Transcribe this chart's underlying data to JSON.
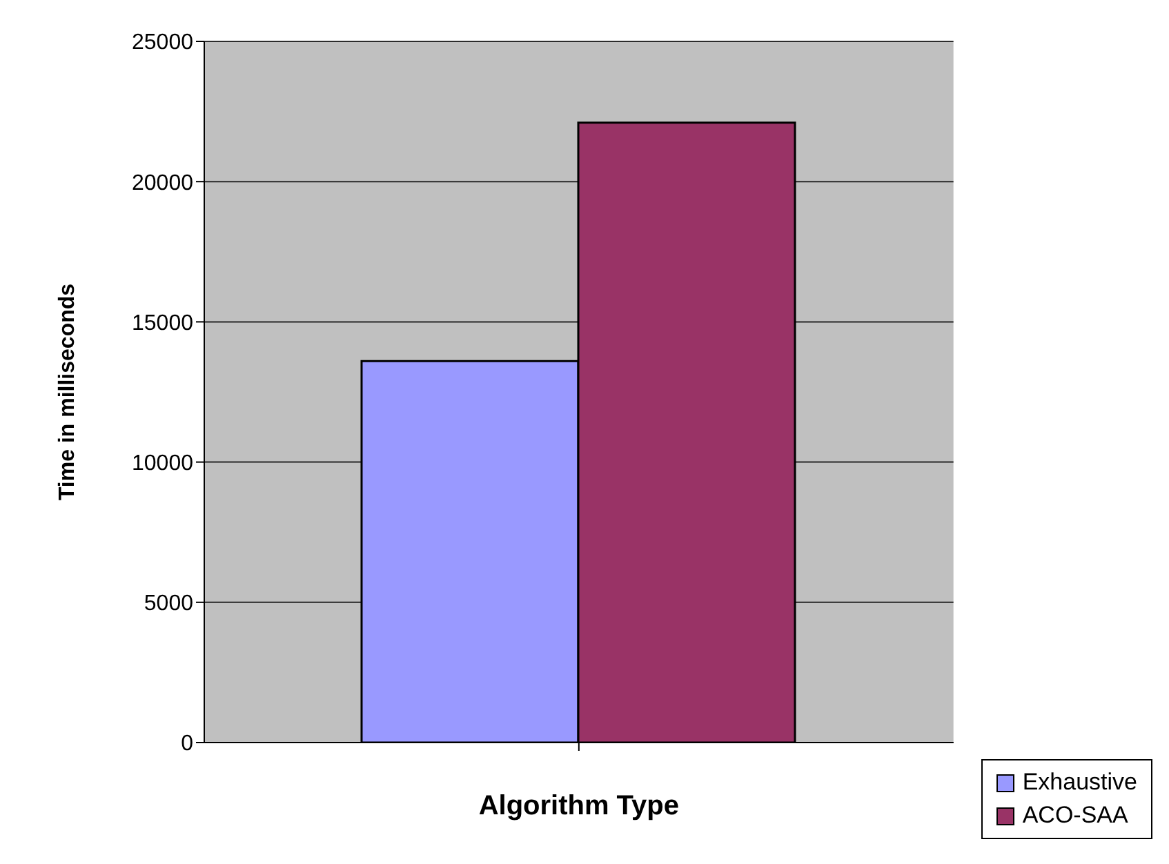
{
  "chart_data": {
    "type": "bar",
    "xlabel": "Algorithm Type",
    "ylabel": "Time in milliseconds",
    "categories": [
      null
    ],
    "series": [
      {
        "name": "Exhaustive",
        "color": "#9999ff",
        "values": [
          13600
        ]
      },
      {
        "name": "ACO-SAA",
        "color": "#993366",
        "values": [
          22100
        ]
      }
    ],
    "ylim": [
      0,
      25000
    ],
    "yticks": [
      0,
      5000,
      10000,
      15000,
      20000,
      25000
    ],
    "grid": "y",
    "legend": "bottom right"
  }
}
